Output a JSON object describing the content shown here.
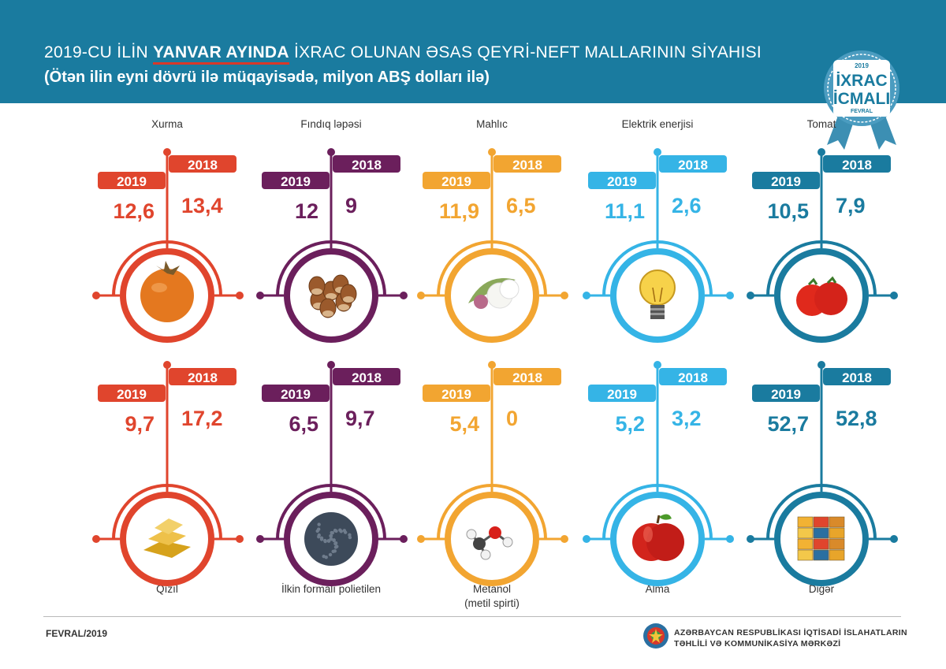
{
  "header": {
    "title_pre": "2019-CU İLİN ",
    "title_highlight": "YANVAR AYINDA",
    "title_post": " İXRAC OLUNAN ƏSAS QEYRİ-NEFT MALLARININ SİYAHISI",
    "subtitle": "(Ötən ilin eyni dövrü ilə müqayisədə, milyon ABŞ dolları ilə)"
  },
  "badge": {
    "year": "2019",
    "line1": "İXRAC",
    "line2": "İCMALI",
    "month": "FEVRAL"
  },
  "colors": {
    "header_bg": "#1a7b9f",
    "red": "#e0452d",
    "purple": "#6b1f5c",
    "orange": "#f2a531",
    "lightblue": "#35b4e6",
    "darkblue": "#1a7b9f"
  },
  "chart_data": {
    "type": "table",
    "unit": "milyon ABŞ dolları",
    "series": [
      "2019",
      "2018"
    ],
    "items": [
      {
        "name": "Xurma",
        "icon": "persimmon-icon",
        "color": "red",
        "v2019": "12,6",
        "v2018": "13,4"
      },
      {
        "name": "Fındıq ləpəsi",
        "icon": "hazelnut-icon",
        "color": "purple",
        "v2019": "12",
        "v2018": "9"
      },
      {
        "name": "Mahlıc",
        "icon": "cotton-icon",
        "color": "orange",
        "v2019": "11,9",
        "v2018": "6,5"
      },
      {
        "name": "Elektrik enerjisi",
        "icon": "lightbulb-icon",
        "color": "lightblue",
        "v2019": "11,1",
        "v2018": "2,6"
      },
      {
        "name": "Tomat",
        "icon": "tomato-icon",
        "color": "darkblue",
        "v2019": "10,5",
        "v2018": "7,9"
      },
      {
        "name": "Qızıl",
        "icon": "gold-bars-icon",
        "color": "red",
        "v2019": "9,7",
        "v2018": "17,2"
      },
      {
        "name": "İlkin formalı polietilen",
        "icon": "polyethylene-granules-icon",
        "color": "purple",
        "v2019": "6,5",
        "v2018": "9,7"
      },
      {
        "name": "Metanol",
        "name2": "(metil spirti)",
        "icon": "methanol-molecule-icon",
        "color": "orange",
        "v2019": "5,4",
        "v2018": "0"
      },
      {
        "name": "Alma",
        "icon": "apple-icon",
        "color": "lightblue",
        "v2019": "5,2",
        "v2018": "3,2"
      },
      {
        "name": "Digər",
        "icon": "containers-icon",
        "color": "darkblue",
        "v2019": "52,7",
        "v2018": "52,8"
      }
    ]
  },
  "footer": {
    "date": "FEVRAL/2019",
    "org_line1": "AZƏRBAYCAN RESPUBLİKASI İQTİSADİ İSLAHATLARIN",
    "org_line2": "TƏHLİLİ VƏ KOMMUNİKASİYA MƏRKƏZİ"
  }
}
